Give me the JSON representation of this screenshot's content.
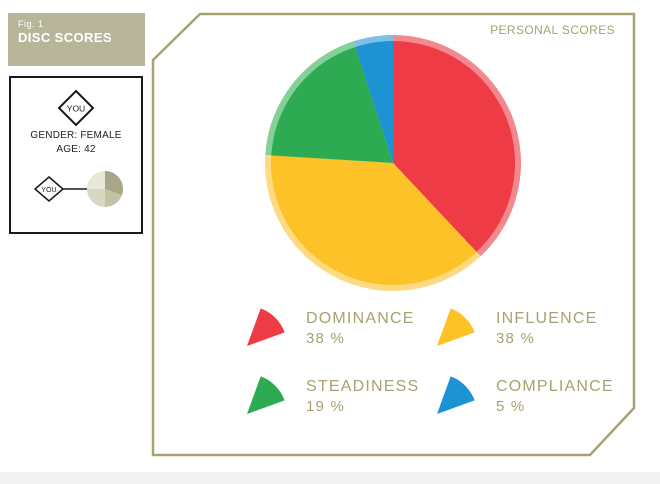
{
  "figure": {
    "number": "Fig. 1",
    "title": "DISC SCORES"
  },
  "profile": {
    "badge": "YOU",
    "gender": "GENDER: FEMALE",
    "age": "AGE: 42",
    "mini_badge": "YOU",
    "mini_pie_colors": [
      "#a8a688",
      "#c3c1a6",
      "#d8d7c2",
      "#e8e7d8"
    ]
  },
  "panel": {
    "title": "PERSONAL SCORES",
    "border_color": "#a8a171"
  },
  "label_color": "#a8a171",
  "chart_data": {
    "type": "pie",
    "title": "PERSONAL SCORES",
    "start_angle_deg": 270,
    "slices": [
      {
        "name": "DOMINANCE",
        "value": 38,
        "display": "38 %",
        "color": "#ee3b46",
        "rim": "#f3888f"
      },
      {
        "name": "INFLUENCE",
        "value": 38,
        "display": "38 %",
        "color": "#fdc228",
        "rim": "#fedb82"
      },
      {
        "name": "STEADINESS",
        "value": 19,
        "display": "19 %",
        "color": "#2eab52",
        "rim": "#85cf98"
      },
      {
        "name": "COMPLIANCE",
        "value": 5,
        "display": "5 %",
        "color": "#1e93d4",
        "rim": "#7ec0e6"
      }
    ]
  }
}
